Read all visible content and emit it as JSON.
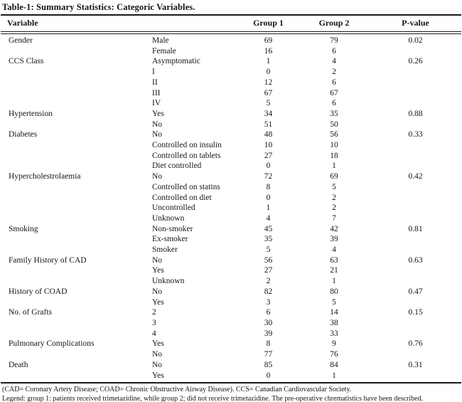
{
  "title": "Table-1: Summary Statistics: Categoric Variables.",
  "header": {
    "variable": "Variable",
    "category": "",
    "group1": "Group 1",
    "group2": "Group 2",
    "pvalue": "P-value"
  },
  "rows": [
    {
      "variable": "Gender",
      "category": "Male",
      "group1": "69",
      "group2": "79",
      "pvalue": "0.02"
    },
    {
      "variable": "",
      "category": "Female",
      "group1": "16",
      "group2": "6",
      "pvalue": ""
    },
    {
      "variable": "CCS Class",
      "category": "Asymptomatic",
      "group1": "1",
      "group2": "4",
      "pvalue": "0.26"
    },
    {
      "variable": "",
      "category": "I",
      "group1": "0",
      "group2": "2",
      "pvalue": ""
    },
    {
      "variable": "",
      "category": "II",
      "group1": "12",
      "group2": "6",
      "pvalue": ""
    },
    {
      "variable": "",
      "category": "III",
      "group1": "67",
      "group2": "67",
      "pvalue": ""
    },
    {
      "variable": "",
      "category": "IV",
      "group1": "5",
      "group2": "6",
      "pvalue": ""
    },
    {
      "variable": "Hypertension",
      "category": "Yes",
      "group1": "34",
      "group2": "35",
      "pvalue": "0.88"
    },
    {
      "variable": "",
      "category": "No",
      "group1": "51",
      "group2": "50",
      "pvalue": ""
    },
    {
      "variable": "Diabetes",
      "category": "No",
      "group1": "48",
      "group2": "56",
      "pvalue": "0.33"
    },
    {
      "variable": "",
      "category": "Controlled on insulin",
      "group1": "10",
      "group2": "10",
      "pvalue": ""
    },
    {
      "variable": "",
      "category": "Controlled on tablets",
      "group1": "27",
      "group2": "18",
      "pvalue": ""
    },
    {
      "variable": "",
      "category": "Diet controlled",
      "group1": "0",
      "group2": "1",
      "pvalue": ""
    },
    {
      "variable": "Hypercholestrolaemia",
      "category": "No",
      "group1": "72",
      "group2": "69",
      "pvalue": "0.42"
    },
    {
      "variable": "",
      "category": "Controlled on statins",
      "group1": "8",
      "group2": "5",
      "pvalue": ""
    },
    {
      "variable": "",
      "category": "Controlled on diet",
      "group1": "0",
      "group2": "2",
      "pvalue": ""
    },
    {
      "variable": "",
      "category": "Uncontrolled",
      "group1": "1",
      "group2": "2",
      "pvalue": ""
    },
    {
      "variable": "",
      "category": "Unknown",
      "group1": "4",
      "group2": "7",
      "pvalue": ""
    },
    {
      "variable": "Smoking",
      "category": "Non-smoker",
      "group1": "45",
      "group2": "42",
      "pvalue": "0.81"
    },
    {
      "variable": "",
      "category": "Ex-smoker",
      "group1": "35",
      "group2": "39",
      "pvalue": ""
    },
    {
      "variable": "",
      "category": "Smoker",
      "group1": "5",
      "group2": "4",
      "pvalue": ""
    },
    {
      "variable": "Family History of CAD",
      "category": "No",
      "group1": "56",
      "group2": "63",
      "pvalue": "0.63"
    },
    {
      "variable": "",
      "category": "Yes",
      "group1": "27",
      "group2": "21",
      "pvalue": ""
    },
    {
      "variable": "",
      "category": "Unknown",
      "group1": "2",
      "group2": "1",
      "pvalue": ""
    },
    {
      "variable": "History of COAD",
      "category": "No",
      "group1": "82",
      "group2": "80",
      "pvalue": "0.47"
    },
    {
      "variable": "",
      "category": "Yes",
      "group1": "3",
      "group2": "5",
      "pvalue": ""
    },
    {
      "variable": "No. of Grafts",
      "category": "2",
      "group1": "6",
      "group2": "14",
      "pvalue": "0.15"
    },
    {
      "variable": "",
      "category": "3",
      "group1": "30",
      "group2": "38",
      "pvalue": ""
    },
    {
      "variable": "",
      "category": "4",
      "group1": "39",
      "group2": "33",
      "pvalue": ""
    },
    {
      "variable": "Pulmonary Complications",
      "category": "Yes",
      "group1": "8",
      "group2": "9",
      "pvalue": "0.76"
    },
    {
      "variable": "",
      "category": "No",
      "group1": "77",
      "group2": "76",
      "pvalue": ""
    },
    {
      "variable": "Death",
      "category": "No",
      "group1": "85",
      "group2": "84",
      "pvalue": "0.31"
    },
    {
      "variable": "",
      "category": "Yes",
      "group1": "0",
      "group2": "1",
      "pvalue": ""
    }
  ],
  "footnotes": [
    "(CAD= Coronary Artery Disease; COAD= Chronic Obstructive Airway Disease). CCS= Canadian Cardiovascular Society.",
    "Legend: group 1: patients received trimetazidine, while group 2; did not receive trimetazidine. The pre-operative chrematistics have been described."
  ]
}
